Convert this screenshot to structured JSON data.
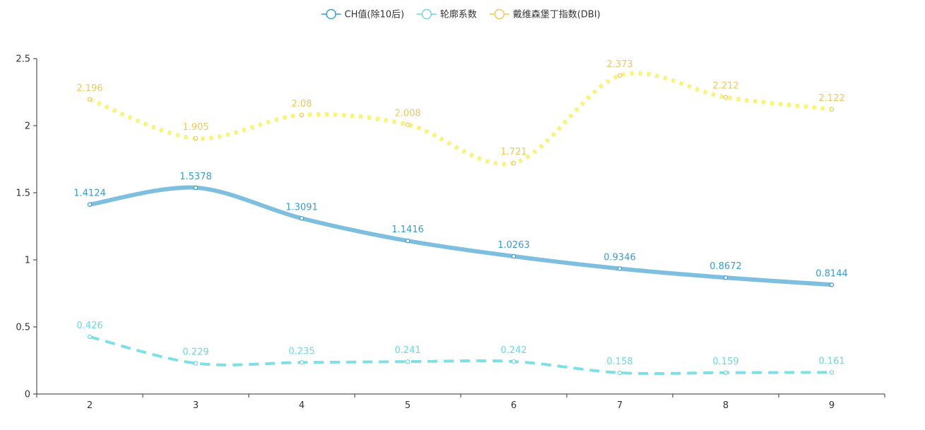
{
  "chart_data": {
    "type": "line",
    "title": "",
    "xlabel": "",
    "ylabel": "",
    "x": [
      "2",
      "3",
      "4",
      "5",
      "6",
      "7",
      "8",
      "9"
    ],
    "ylim": [
      0,
      2.5
    ],
    "yticks": [
      "0",
      "0.5",
      "1",
      "1.5",
      "2",
      "2.5"
    ],
    "grid": false,
    "legend_position": "top-center",
    "series": [
      {
        "name": "CH值(除10后)",
        "values": [
          1.4124,
          1.5378,
          1.3091,
          1.1416,
          1.0263,
          0.9346,
          0.8672,
          0.8144
        ],
        "labels": [
          "1.4124",
          "1.5378",
          "1.3091",
          "1.1416",
          "1.0263",
          "0.9346",
          "0.8672",
          "0.8144"
        ],
        "color": "#7ebfe0",
        "label_color": "#3a9bd0",
        "style": "solid"
      },
      {
        "name": "轮廓系数",
        "values": [
          0.426,
          0.229,
          0.235,
          0.241,
          0.242,
          0.158,
          0.159,
          0.161
        ],
        "labels": [
          "0.426",
          "0.229",
          "0.235",
          "0.241",
          "0.242",
          "0.158",
          "0.159",
          "0.161"
        ],
        "color": "#7de0e6",
        "label_color": "#6cd8e0",
        "style": "dashed"
      },
      {
        "name": "戴维森堡丁指数(DBI)",
        "values": [
          2.196,
          1.905,
          2.08,
          2.008,
          1.721,
          2.373,
          2.212,
          2.122
        ],
        "labels": [
          "2.196",
          "1.905",
          "2.08",
          "2.008",
          "1.721",
          "2.373",
          "2.212",
          "2.122"
        ],
        "color": "#f8f47a",
        "label_color": "#f0c85a",
        "style": "dotted"
      }
    ]
  }
}
